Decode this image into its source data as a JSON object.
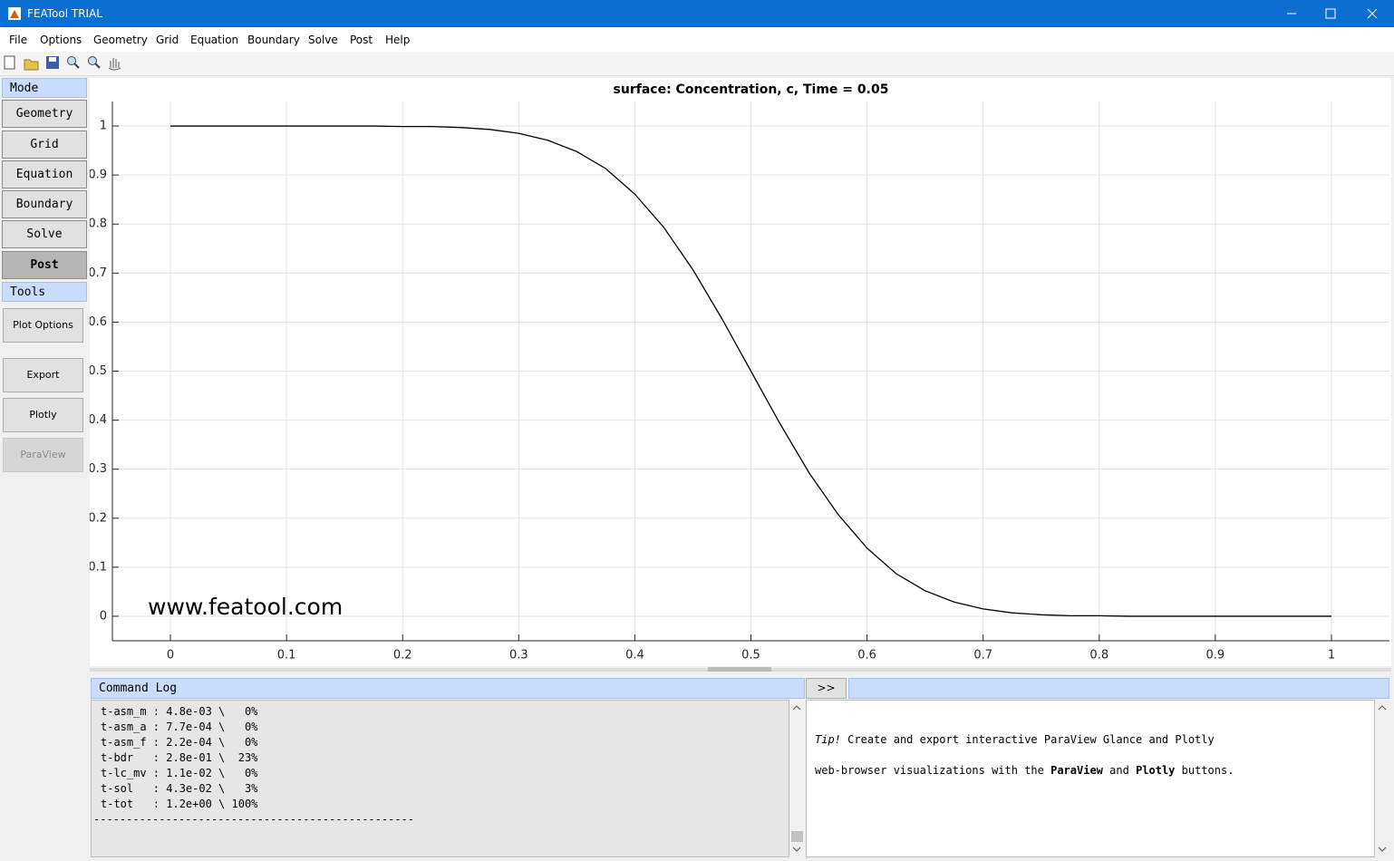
{
  "window": {
    "title": "FEATool TRIAL"
  },
  "menu": [
    "File",
    "Options",
    "Geometry",
    "Grid",
    "Equation",
    "Boundary",
    "Solve",
    "Post",
    "Help"
  ],
  "sidebar": {
    "mode_header": "Mode",
    "mode_buttons": [
      "Geometry",
      "Grid",
      "Equation",
      "Boundary",
      "Solve",
      "Post"
    ],
    "tools_header": "Tools",
    "tool_buttons": [
      "Plot Options",
      "Export",
      "Plotly",
      "ParaView"
    ]
  },
  "chart_data": {
    "type": "line",
    "title": "surface: Concentration, c, Time = 0.05",
    "x": [
      0,
      0.025,
      0.05,
      0.075,
      0.1,
      0.125,
      0.15,
      0.175,
      0.2,
      0.225,
      0.25,
      0.275,
      0.3,
      0.325,
      0.35,
      0.375,
      0.4,
      0.425,
      0.45,
      0.475,
      0.5,
      0.525,
      0.55,
      0.575,
      0.6,
      0.625,
      0.65,
      0.675,
      0.7,
      0.725,
      0.75,
      0.775,
      0.8,
      0.825,
      0.85,
      0.875,
      0.9,
      0.925,
      0.95,
      0.975,
      1
    ],
    "series": [
      {
        "name": "c",
        "color": "#000000",
        "values": [
          1,
          1,
          1,
          1,
          1,
          1,
          1,
          1,
          0.999,
          0.999,
          0.997,
          0.993,
          0.985,
          0.971,
          0.948,
          0.913,
          0.861,
          0.793,
          0.707,
          0.607,
          0.5,
          0.393,
          0.293,
          0.208,
          0.139,
          0.087,
          0.052,
          0.029,
          0.015,
          0.007,
          0.003,
          0.001,
          0.001,
          0,
          0,
          0,
          0,
          0,
          0,
          0,
          0
        ]
      }
    ],
    "xlim": [
      -0.05,
      1.05
    ],
    "ylim": [
      -0.05,
      1.05
    ],
    "xticks": [
      0,
      0.1,
      0.2,
      0.3,
      0.4,
      0.5,
      0.6,
      0.7,
      0.8,
      0.9,
      1
    ],
    "yticks": [
      0,
      0.1,
      0.2,
      0.3,
      0.4,
      0.5,
      0.6,
      0.7,
      0.8,
      0.9,
      1
    ],
    "grid": true,
    "watermark": "www.featool.com"
  },
  "log": {
    "header": "Command Log",
    "toggle": ">>",
    "lines": [
      "t-asm_m : 4.8e-03 \\   0%",
      "t-asm_a : 7.7e-04 \\   0%",
      "t-asm_f : 2.2e-04 \\   0%",
      "t-bdr   : 2.8e-01 \\  23%",
      "t-lc_mv : 1.1e-02 \\   0%",
      "t-sol   : 4.3e-02 \\   3%",
      "t-tot   : 1.2e+00 \\ 100%"
    ],
    "separator": "-------------------------------------------------"
  },
  "tip": {
    "label": "Tip!",
    "line1": "Create and export interactive ParaView Glance and Plotly",
    "line2": [
      "web-browser visualizations with the",
      "ParaView",
      "and",
      "Plotly",
      "buttons."
    ]
  }
}
